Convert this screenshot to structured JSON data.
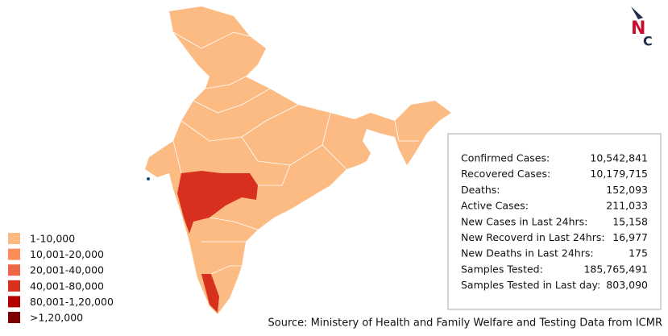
{
  "logo": {
    "letter1": "N",
    "letter2": "C"
  },
  "legend": [
    {
      "label": "1-10,000",
      "color": "#fdbb84"
    },
    {
      "label": "10,001-20,000",
      "color": "#fc8d59"
    },
    {
      "label": "20,001-40,000",
      "color": "#ef6548"
    },
    {
      "label": "40,001-80,000",
      "color": "#d7301f"
    },
    {
      "label": "80,001-1,20,000",
      "color": "#b30000"
    },
    {
      "label": ">1,20,000",
      "color": "#7f0000"
    }
  ],
  "stats": [
    {
      "label": "Confirmed Cases:",
      "value": "10,542,841"
    },
    {
      "label": "Recovered Cases:",
      "value": "10,179,715"
    },
    {
      "label": "Deaths:",
      "value": "152,093"
    },
    {
      "label": "Active Cases:",
      "value": "211,033"
    },
    {
      "label": "New Cases in Last 24hrs:",
      "value": "15,158"
    },
    {
      "label": "New Recoverd in Last 24hrs:",
      "value": "16,977"
    },
    {
      "label": "New Deaths in Last 24hrs:",
      "value": "175"
    },
    {
      "label": "Samples Tested:",
      "value": "185,765,491"
    },
    {
      "label": "Samples Tested in Last day:",
      "value": "803,090"
    }
  ],
  "source": "Source: Ministery of Health and Family Welfare and Testing Data from ICMR"
}
